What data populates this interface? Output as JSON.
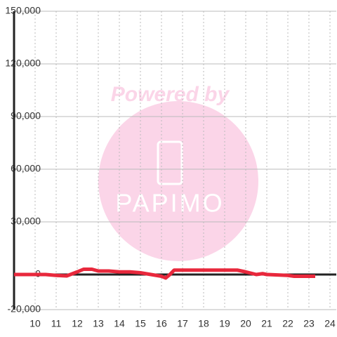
{
  "chart_data": {
    "type": "line",
    "watermark": {
      "top": "Powered by",
      "bottom": "PAPIMO"
    },
    "x": [
      9,
      10.5,
      11,
      11.5,
      12,
      12.3,
      12.7,
      13,
      13.5,
      14,
      14.5,
      15,
      15.5,
      16,
      16.2,
      16.4,
      16.6,
      17,
      18,
      19,
      19.6,
      20,
      20.5,
      20.8,
      21,
      22,
      22.3,
      23.3
    ],
    "series": [
      {
        "color": "#e8283c",
        "values": [
          0,
          0,
          -500,
          -800,
          1500,
          3000,
          3000,
          2000,
          2000,
          1500,
          1500,
          1000,
          0,
          -1000,
          -2000,
          0,
          2500,
          2500,
          2500,
          2500,
          2500,
          1500,
          0,
          500,
          0,
          -500,
          -1000,
          -1000
        ]
      }
    ],
    "xlim": [
      9,
      24.3
    ],
    "xticks": [
      10,
      11,
      12,
      13,
      14,
      15,
      16,
      17,
      18,
      19,
      20,
      21,
      22,
      23,
      24
    ],
    "ylim": [
      -20000,
      150000
    ],
    "yticks": [
      {
        "value": -20000,
        "label": "-20,000"
      },
      0,
      {
        "value": 30000,
        "label": "30,000"
      },
      {
        "value": 60000,
        "label": "60,000"
      },
      {
        "value": 90000,
        "label": "90,000"
      },
      {
        "value": 120000,
        "label": "120,000"
      },
      {
        "value": 150000,
        "label": "150,000"
      }
    ],
    "grid": true
  }
}
